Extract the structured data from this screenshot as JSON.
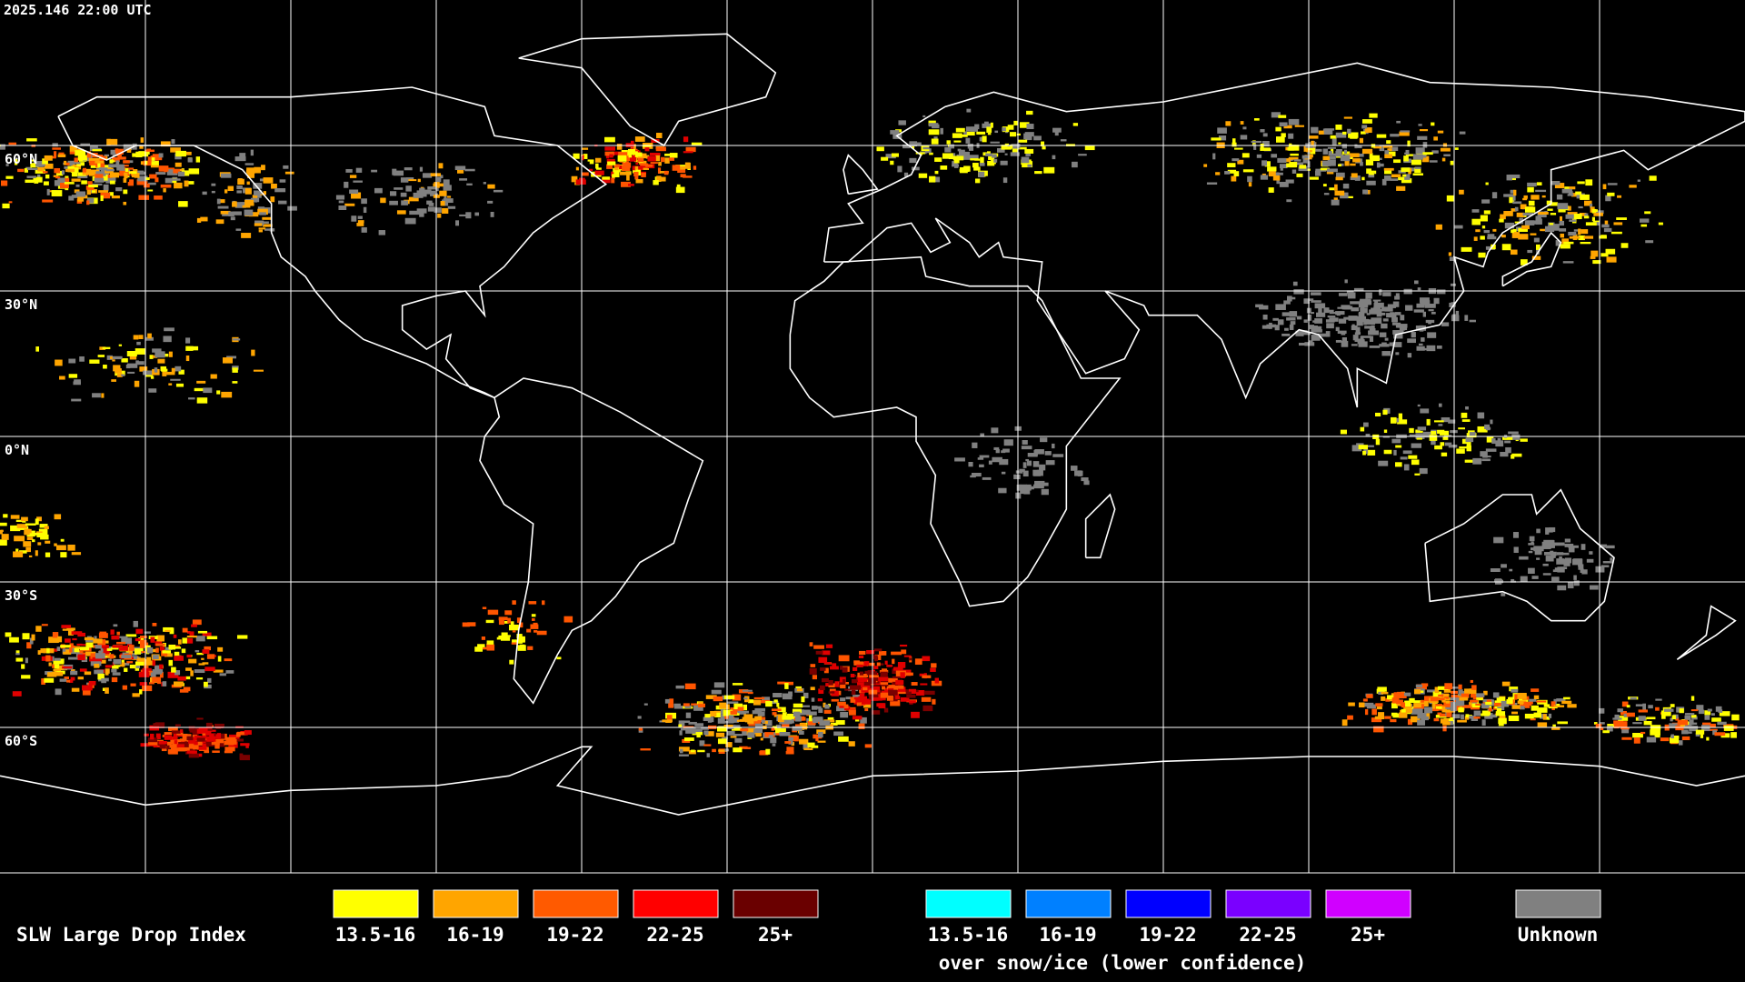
{
  "header": {
    "timestamp": "2025.146 22:00 UTC"
  },
  "map": {
    "lat_labels": [
      "60°N",
      "30°N",
      "0°N",
      "30°S",
      "60°S"
    ]
  },
  "legend": {
    "title": "SLW Large Drop Index",
    "items": [
      "13.5-16",
      "16-19",
      "19-22",
      "22-25",
      "25+"
    ],
    "snow_ice_items": [
      "13.5-16",
      "16-19",
      "19-22",
      "22-25",
      "25+"
    ],
    "snow_ice_caption": "over snow/ice (lower confidence)",
    "unknown": "Unknown"
  }
}
